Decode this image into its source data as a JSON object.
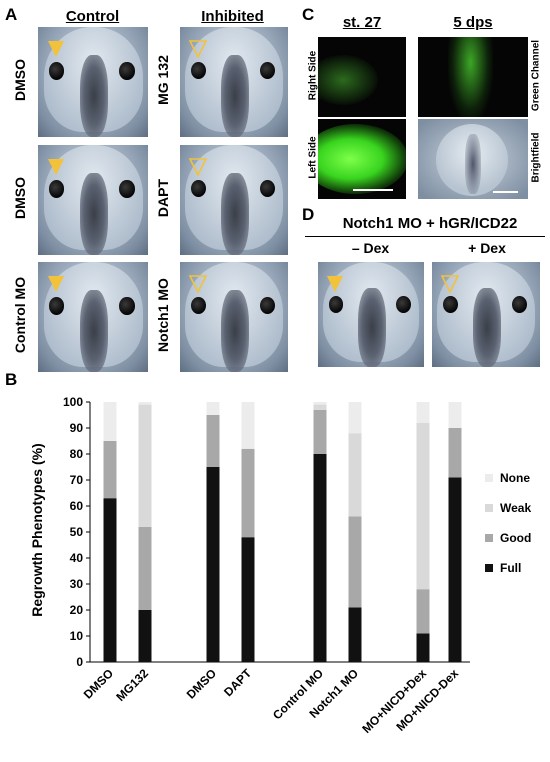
{
  "panels": {
    "a": {
      "label": "A",
      "col_control": "Control",
      "col_inhibited": "Inhibited",
      "rows": [
        {
          "left": "DMSO",
          "right": "MG 132"
        },
        {
          "left": "DMSO",
          "right": "DAPT"
        },
        {
          "left": "Control MO",
          "right": "Notch1 MO"
        }
      ]
    },
    "c": {
      "label": "C",
      "head_left": "st. 27",
      "head_right": "5 dps",
      "side_top": "Right Side",
      "side_bottom": "Left Side",
      "channel_top": "Green Channel",
      "channel_bottom": "Brightfield"
    },
    "d": {
      "label": "D",
      "title": "Notch1 MO + hGR/ICD22",
      "left": "– Dex",
      "right": "+ Dex"
    },
    "b": {
      "label": "B"
    }
  },
  "colors": {
    "full": "#111111",
    "good": "#a8a8a8",
    "weak": "#d9d9d9",
    "none": "#ececec",
    "arrow": "#f2c23a"
  },
  "chart_data": {
    "type": "bar",
    "stacked": true,
    "ylabel": "Regrowth Phenotypes (%)",
    "ylim": [
      0,
      100
    ],
    "yticks": [
      0,
      10,
      20,
      30,
      40,
      50,
      60,
      70,
      80,
      90,
      100
    ],
    "categories": [
      "DMSO",
      "MG132",
      "DMSO",
      "DAPT",
      "Control MO",
      "Notch1 MO",
      "MO+NICD+Dex",
      "MO+NICD-Dex"
    ],
    "legend": [
      "None",
      "Weak",
      "Good",
      "Full"
    ],
    "legend_position": "right",
    "series": [
      {
        "name": "Full",
        "values": [
          63,
          20,
          75,
          48,
          80,
          21,
          11,
          71
        ]
      },
      {
        "name": "Good",
        "values": [
          22,
          32,
          20,
          34,
          17,
          35,
          17,
          19
        ]
      },
      {
        "name": "Weak",
        "values": [
          0,
          47,
          0,
          0,
          2,
          32,
          64,
          0
        ]
      },
      {
        "name": "None",
        "values": [
          15,
          1,
          5,
          18,
          1,
          12,
          8,
          10
        ]
      }
    ]
  }
}
